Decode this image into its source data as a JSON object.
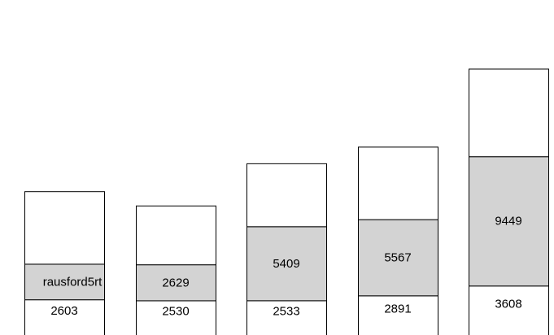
{
  "chart_data": {
    "type": "bar",
    "stacked": true,
    "title": "",
    "xlabel": "",
    "ylabel": "",
    "axes_visible": false,
    "grid": false,
    "legend": "none",
    "ylim": [
      0,
      24000
    ],
    "categories": [
      "",
      "",
      "",
      "",
      ""
    ],
    "stacks": [
      {
        "segments": [
          {
            "value": 2603,
            "label": "2603",
            "fill": "#ffffff"
          },
          {
            "value": 2600,
            "label": "rausford5rt",
            "fill": "#d3d3d3"
          },
          {
            "value": 5300,
            "label": "",
            "fill": "#ffffff"
          }
        ]
      },
      {
        "segments": [
          {
            "value": 2530,
            "label": "2530",
            "fill": "#ffffff"
          },
          {
            "value": 2629,
            "label": "2629",
            "fill": "#d3d3d3"
          },
          {
            "value": 4300,
            "label": "",
            "fill": "#ffffff"
          }
        ]
      },
      {
        "segments": [
          {
            "value": 2533,
            "label": "2533",
            "fill": "#ffffff"
          },
          {
            "value": 5409,
            "label": "5409",
            "fill": "#d3d3d3"
          },
          {
            "value": 4600,
            "label": "",
            "fill": "#ffffff"
          }
        ]
      },
      {
        "segments": [
          {
            "value": 2891,
            "label": "2891",
            "fill": "#ffffff"
          },
          {
            "value": 5567,
            "label": "5567",
            "fill": "#d3d3d3"
          },
          {
            "value": 5300,
            "label": "",
            "fill": "#ffffff"
          }
        ]
      },
      {
        "segments": [
          {
            "value": 3608,
            "label": "3608",
            "fill": "#ffffff"
          },
          {
            "value": 9449,
            "label": "9449",
            "fill": "#d3d3d3"
          },
          {
            "value": 6400,
            "label": "",
            "fill": "#ffffff"
          }
        ]
      }
    ]
  },
  "colors": {
    "segment_gray": "#d3d3d3",
    "segment_white": "#ffffff",
    "outline": "#000000"
  }
}
